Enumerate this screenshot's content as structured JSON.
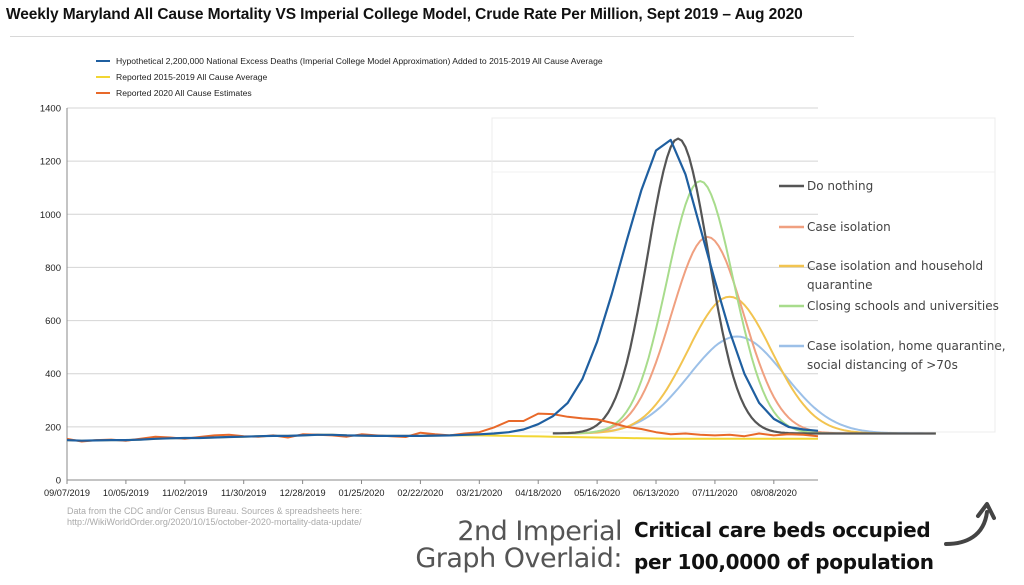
{
  "title": "Weekly Maryland All Cause Mortality VS Imperial College Model, Crude Rate Per Million, Sept 2019 – Aug 2020",
  "source_line1": "Data from the CDC and/or Census Bureau. Sources & spreadsheets here:",
  "source_line2": "http://WikiWorldOrder.org/2020/10/15/october-2020-mortality-data-update/",
  "overlay_caption_line1": "2nd Imperial",
  "overlay_caption_line2": "Graph Overlaid:",
  "overlay_units_line1": "Critical care beds occupied",
  "overlay_units_line2": "per 100,0000 of population",
  "chart_data": [
    {
      "type": "line",
      "title": "Weekly Maryland All Cause Mortality VS Imperial College Model, Crude Rate Per Million, Sept 2019 – Aug 2020",
      "xlabel": "",
      "ylabel": "",
      "ylim": [
        0,
        1400
      ],
      "yticks": [
        0,
        200,
        400,
        600,
        800,
        1000,
        1200,
        1400
      ],
      "xtick_labels": [
        "09/07/2019",
        "10/05/2019",
        "11/02/2019",
        "11/30/2019",
        "12/28/2019",
        "01/25/2020",
        "02/22/2020",
        "03/21/2020",
        "04/18/2020",
        "05/16/2020",
        "06/13/2020",
        "07/11/2020",
        "08/08/2020"
      ],
      "x_weeks": 52,
      "grid": true,
      "legend_position": "top-left",
      "series": [
        {
          "name": "Hypothetical 2,200,000 National Excess Deaths (Imperial College Model Approximation) Added to 2015-2019 All Cause Average",
          "color": "#1f5fa0",
          "values": [
            150,
            148,
            149,
            150,
            150,
            152,
            155,
            157,
            158,
            158,
            160,
            162,
            163,
            165,
            166,
            166,
            168,
            170,
            170,
            168,
            167,
            166,
            166,
            166,
            166,
            167,
            168,
            170,
            172,
            175,
            180,
            190,
            210,
            240,
            290,
            380,
            520,
            700,
            900,
            1090,
            1240,
            1280,
            1150,
            950,
            750,
            560,
            400,
            290,
            230,
            200,
            190,
            185
          ]
        },
        {
          "name": "Reported 2015-2019 All Cause Average",
          "color": "#f2d633",
          "values": [
            150,
            148,
            149,
            150,
            150,
            152,
            155,
            157,
            158,
            158,
            160,
            162,
            163,
            165,
            166,
            166,
            168,
            170,
            170,
            168,
            167,
            166,
            166,
            166,
            166,
            167,
            168,
            168,
            168,
            167,
            166,
            165,
            164,
            163,
            162,
            161,
            160,
            159,
            158,
            157,
            156,
            155,
            155,
            155,
            155,
            155,
            155,
            155,
            155,
            155,
            155,
            155
          ]
        },
        {
          "name": "Reported 2020 All Cause Estimates",
          "color": "#e8692a",
          "values": [
            155,
            145,
            150,
            152,
            148,
            155,
            163,
            160,
            155,
            162,
            168,
            170,
            165,
            163,
            168,
            160,
            172,
            170,
            168,
            163,
            172,
            168,
            165,
            162,
            178,
            172,
            168,
            175,
            180,
            198,
            222,
            222,
            250,
            248,
            238,
            232,
            228,
            215,
            200,
            192,
            180,
            172,
            175,
            170,
            168,
            170,
            165,
            175,
            168,
            172,
            170,
            165
          ]
        }
      ]
    },
    {
      "type": "line",
      "title": "",
      "ylabel": "Critical care beds occupied per 100,0000 of population",
      "legend_position": "right",
      "series": [
        {
          "name": "Do nothing",
          "color": "#555555",
          "peak_week": 41.5,
          "peak": 1285,
          "spread": 3.2
        },
        {
          "name": "Case isolation",
          "color": "#f0a080",
          "peak_week": 43.5,
          "peak": 915,
          "spread": 3.8
        },
        {
          "name": "Case isolation and household quarantine",
          "color": "#f2c450",
          "peak_week": 45.0,
          "peak": 690,
          "spread": 4.4
        },
        {
          "name": "Closing schools and universities",
          "color": "#a8dc8c",
          "peak_week": 43.0,
          "peak": 1125,
          "spread": 3.5
        },
        {
          "name": "Case isolation, home quarantine, social distancing of >70s",
          "color": "#9cc0e8",
          "peak_week": 45.5,
          "peak": 540,
          "spread": 5.0
        }
      ]
    }
  ]
}
